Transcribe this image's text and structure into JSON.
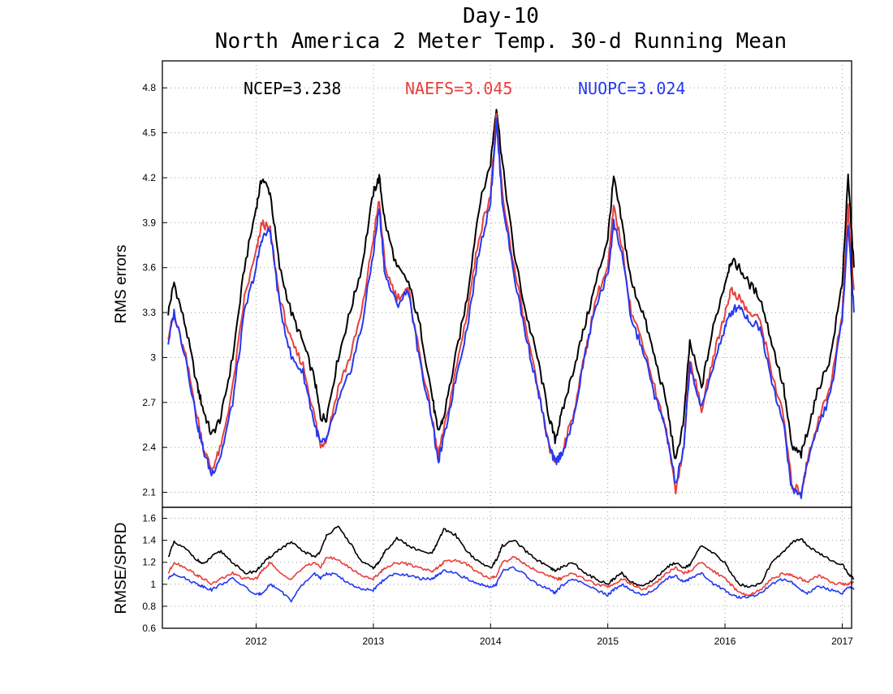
{
  "title_line1": "Day-10",
  "title_line2": "North America 2 Meter Temp. 30-d Running Mean",
  "colors": {
    "ncep": "#000000",
    "naefs": "#e8403a",
    "nuopc": "#2438f0"
  },
  "chart_data": [
    {
      "type": "line",
      "ylabel": "RMS errors",
      "ylim": [
        2.0,
        4.98
      ],
      "yticks": [
        "2.1",
        "2.4",
        "2.7",
        "3",
        "3.3",
        "3.6",
        "3.9",
        "4.2",
        "4.5",
        "4.8"
      ],
      "grid": true,
      "legend": [
        {
          "key": "ncep",
          "text": "NCEP=3.238"
        },
        {
          "key": "naefs",
          "text": "NAEFS=3.045"
        },
        {
          "key": "nuopc",
          "text": "NUOPC=3.024"
        }
      ],
      "x": [
        2011.25,
        2011.3,
        2011.4,
        2011.5,
        2011.55,
        2011.62,
        2011.7,
        2011.8,
        2011.9,
        2012.0,
        2012.05,
        2012.12,
        2012.2,
        2012.3,
        2012.4,
        2012.5,
        2012.55,
        2012.6,
        2012.7,
        2012.8,
        2012.9,
        2013.0,
        2013.05,
        2013.1,
        2013.2,
        2013.3,
        2013.4,
        2013.5,
        2013.55,
        2013.6,
        2013.7,
        2013.8,
        2013.9,
        2014.0,
        2014.05,
        2014.1,
        2014.2,
        2014.3,
        2014.4,
        2014.5,
        2014.55,
        2014.6,
        2014.7,
        2014.8,
        2014.9,
        2015.0,
        2015.05,
        2015.12,
        2015.2,
        2015.3,
        2015.4,
        2015.5,
        2015.58,
        2015.65,
        2015.7,
        2015.8,
        2015.9,
        2016.0,
        2016.05,
        2016.12,
        2016.2,
        2016.3,
        2016.4,
        2016.5,
        2016.57,
        2016.65,
        2016.7,
        2016.8,
        2016.9,
        2017.0,
        2017.05,
        2017.1
      ],
      "series": [
        {
          "key": "ncep",
          "name": "NCEP",
          "values": [
            3.3,
            3.5,
            3.2,
            2.8,
            2.65,
            2.48,
            2.6,
            3.0,
            3.6,
            4.0,
            4.2,
            4.1,
            3.6,
            3.3,
            3.1,
            2.85,
            2.6,
            2.6,
            3.0,
            3.3,
            3.6,
            4.1,
            4.2,
            3.9,
            3.6,
            3.5,
            3.2,
            2.75,
            2.5,
            2.6,
            3.0,
            3.4,
            4.0,
            4.3,
            4.68,
            4.3,
            3.7,
            3.3,
            3.0,
            2.6,
            2.45,
            2.6,
            2.9,
            3.2,
            3.5,
            3.8,
            4.2,
            3.9,
            3.5,
            3.3,
            3.0,
            2.7,
            2.3,
            2.6,
            3.1,
            2.8,
            3.2,
            3.5,
            3.65,
            3.6,
            3.5,
            3.4,
            3.1,
            2.8,
            2.4,
            2.35,
            2.5,
            2.8,
            3.0,
            3.5,
            4.2,
            3.6
          ],
          "rmse_sprd": [
            1.25,
            1.38,
            1.32,
            1.22,
            1.18,
            1.25,
            1.3,
            1.2,
            1.1,
            1.12,
            1.18,
            1.25,
            1.32,
            1.38,
            1.3,
            1.25,
            1.3,
            1.45,
            1.52,
            1.38,
            1.2,
            1.15,
            1.2,
            1.3,
            1.42,
            1.35,
            1.3,
            1.28,
            1.38,
            1.5,
            1.45,
            1.3,
            1.2,
            1.15,
            1.22,
            1.35,
            1.4,
            1.3,
            1.22,
            1.15,
            1.12,
            1.15,
            1.2,
            1.1,
            1.05,
            1.0,
            1.05,
            1.1,
            1.02,
            0.98,
            1.05,
            1.15,
            1.2,
            1.15,
            1.18,
            1.35,
            1.28,
            1.2,
            1.1,
            1.0,
            0.98,
            1.0,
            1.2,
            1.3,
            1.38,
            1.42,
            1.35,
            1.28,
            1.22,
            1.18,
            1.1,
            1.05
          ]
        },
        {
          "key": "naefs",
          "name": "NAEFS",
          "values": [
            3.15,
            3.28,
            3.0,
            2.6,
            2.4,
            2.25,
            2.4,
            2.8,
            3.4,
            3.7,
            3.9,
            3.85,
            3.4,
            3.1,
            2.95,
            2.6,
            2.42,
            2.45,
            2.8,
            3.0,
            3.3,
            3.8,
            4.05,
            3.6,
            3.4,
            3.45,
            3.0,
            2.6,
            2.35,
            2.5,
            2.9,
            3.3,
            3.8,
            4.1,
            4.6,
            4.1,
            3.6,
            3.2,
            2.8,
            2.4,
            2.3,
            2.35,
            2.6,
            3.0,
            3.4,
            3.6,
            4.0,
            3.75,
            3.3,
            3.1,
            2.8,
            2.5,
            2.12,
            2.4,
            3.0,
            2.65,
            3.0,
            3.3,
            3.45,
            3.4,
            3.3,
            3.25,
            2.9,
            2.6,
            2.15,
            2.1,
            2.3,
            2.6,
            2.8,
            3.3,
            4.0,
            3.45
          ],
          "rmse_sprd": [
            1.1,
            1.2,
            1.15,
            1.08,
            1.05,
            1.0,
            1.05,
            1.1,
            1.05,
            1.05,
            1.12,
            1.2,
            1.1,
            1.05,
            1.15,
            1.2,
            1.15,
            1.25,
            1.22,
            1.15,
            1.08,
            1.05,
            1.1,
            1.15,
            1.2,
            1.18,
            1.15,
            1.12,
            1.15,
            1.2,
            1.22,
            1.18,
            1.1,
            1.05,
            1.08,
            1.2,
            1.25,
            1.18,
            1.12,
            1.08,
            1.05,
            1.05,
            1.1,
            1.05,
            1.0,
            0.98,
            1.0,
            1.05,
            1.0,
            0.95,
            1.0,
            1.1,
            1.15,
            1.1,
            1.12,
            1.2,
            1.12,
            1.05,
            1.0,
            0.92,
            0.9,
            0.95,
            1.05,
            1.1,
            1.08,
            1.05,
            1.02,
            1.08,
            1.02,
            1.0,
            1.0,
            1.02
          ]
        },
        {
          "key": "nuopc",
          "name": "NUOPC",
          "values": [
            3.1,
            3.3,
            3.0,
            2.55,
            2.38,
            2.22,
            2.35,
            2.7,
            3.3,
            3.6,
            3.8,
            3.85,
            3.35,
            3.0,
            2.9,
            2.55,
            2.42,
            2.45,
            2.7,
            2.9,
            3.2,
            3.7,
            4.0,
            3.55,
            3.35,
            3.45,
            2.95,
            2.6,
            2.3,
            2.45,
            2.85,
            3.2,
            3.7,
            4.05,
            4.58,
            4.05,
            3.55,
            3.15,
            2.8,
            2.4,
            2.3,
            2.35,
            2.55,
            3.0,
            3.35,
            3.55,
            3.9,
            3.7,
            3.25,
            3.05,
            2.75,
            2.5,
            2.15,
            2.4,
            2.95,
            2.65,
            2.95,
            3.2,
            3.3,
            3.35,
            3.25,
            3.2,
            2.85,
            2.55,
            2.12,
            2.08,
            2.3,
            2.55,
            2.75,
            3.25,
            3.9,
            3.3
          ],
          "rmse_sprd": [
            1.05,
            1.1,
            1.05,
            1.0,
            0.98,
            0.95,
            1.0,
            1.05,
            0.98,
            0.9,
            0.92,
            1.0,
            0.95,
            0.85,
            1.0,
            1.1,
            1.05,
            1.1,
            1.08,
            1.0,
            0.95,
            0.95,
            1.0,
            1.05,
            1.1,
            1.08,
            1.05,
            1.05,
            1.08,
            1.12,
            1.1,
            1.05,
            1.0,
            0.98,
            1.0,
            1.12,
            1.15,
            1.08,
            1.0,
            0.95,
            0.92,
            0.98,
            1.05,
            1.0,
            0.95,
            0.9,
            0.95,
            1.0,
            0.95,
            0.9,
            0.95,
            1.05,
            1.08,
            1.02,
            1.05,
            1.1,
            1.0,
            0.95,
            0.9,
            0.88,
            0.88,
            0.92,
            1.0,
            1.05,
            1.02,
            0.95,
            0.92,
            0.98,
            0.95,
            0.92,
            0.98,
            0.95
          ]
        }
      ]
    },
    {
      "type": "line",
      "ylabel": "RMSE/SPRD",
      "ylim": [
        0.6,
        1.7
      ],
      "yticks": [
        "0.6",
        "0.8",
        "1",
        "1.2",
        "1.4",
        "1.6"
      ],
      "xlim": [
        2011.2,
        2017.08
      ],
      "xticks": [
        "2012",
        "2013",
        "2014",
        "2015",
        "2016",
        "2017"
      ],
      "grid": true
    }
  ]
}
